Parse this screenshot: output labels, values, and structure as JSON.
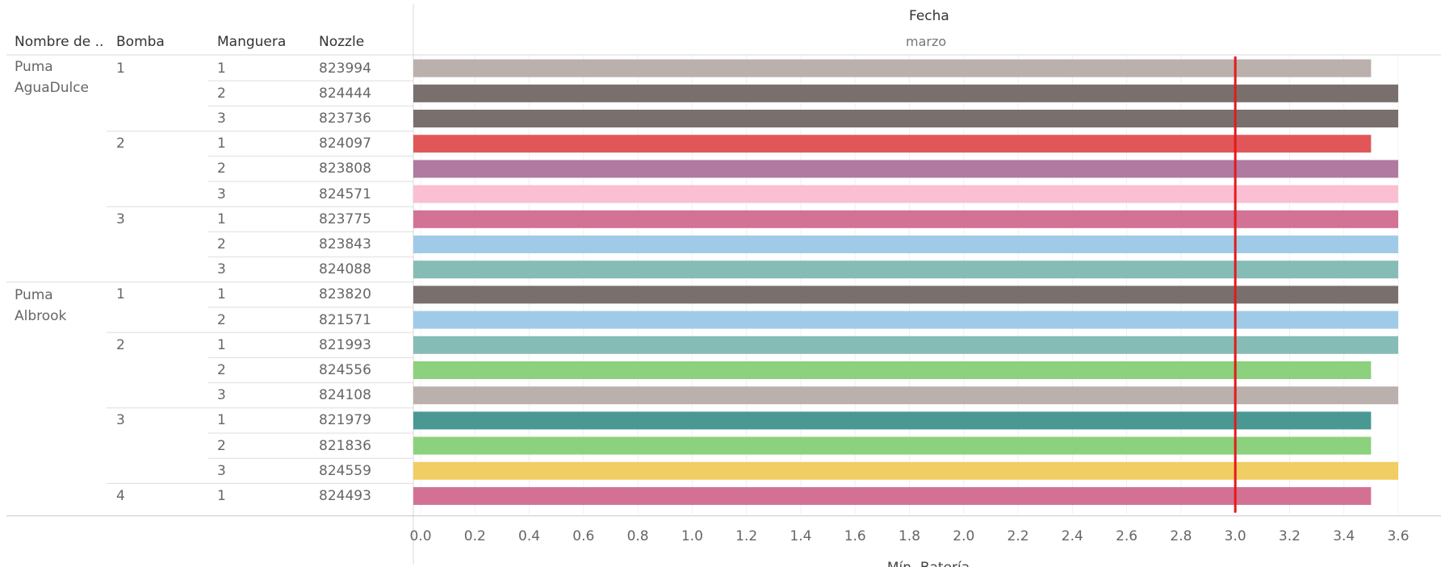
{
  "headers": {
    "col1": "Nombre de ..",
    "col2": "Bomba",
    "col3": "Manguera",
    "col4": "Nozzle",
    "top": "Fecha",
    "sub": "marzo"
  },
  "groups": [
    {
      "name": [
        "Puma",
        "AguaDulce"
      ]
    },
    {
      "name": [
        "Puma",
        "Albrook"
      ]
    }
  ],
  "chart_data": {
    "type": "bar",
    "orientation": "horizontal",
    "title": "Fecha",
    "column_label": "marzo",
    "xlabel": "Mín. Batería",
    "xlim": [
      0,
      3.6
    ],
    "xticks": [
      "0.0",
      "0.2",
      "0.4",
      "0.6",
      "0.8",
      "1.0",
      "1.2",
      "1.4",
      "1.6",
      "1.8",
      "2.0",
      "2.2",
      "2.4",
      "2.6",
      "2.8",
      "3.0",
      "3.2",
      "3.4",
      "3.6"
    ],
    "reference_line": {
      "x": 3.0,
      "color": "#e31a1c"
    },
    "grid": true,
    "rows": [
      {
        "station": "Puma AguaDulce",
        "bomba": "1",
        "manguera": "1",
        "nozzle": "823994",
        "value": 3.5,
        "color": "#bab0ac"
      },
      {
        "station": "Puma AguaDulce",
        "bomba": "1",
        "manguera": "2",
        "nozzle": "824444",
        "value": 3.6,
        "color": "#79706e"
      },
      {
        "station": "Puma AguaDulce",
        "bomba": "1",
        "manguera": "3",
        "nozzle": "823736",
        "value": 3.6,
        "color": "#79706e"
      },
      {
        "station": "Puma AguaDulce",
        "bomba": "2",
        "manguera": "1",
        "nozzle": "824097",
        "value": 3.5,
        "color": "#e15759"
      },
      {
        "station": "Puma AguaDulce",
        "bomba": "2",
        "manguera": "2",
        "nozzle": "823808",
        "value": 3.6,
        "color": "#b07aa1"
      },
      {
        "station": "Puma AguaDulce",
        "bomba": "2",
        "manguera": "3",
        "nozzle": "824571",
        "value": 3.6,
        "color": "#fabfd2"
      },
      {
        "station": "Puma AguaDulce",
        "bomba": "3",
        "manguera": "1",
        "nozzle": "823775",
        "value": 3.6,
        "color": "#d37295"
      },
      {
        "station": "Puma AguaDulce",
        "bomba": "3",
        "manguera": "2",
        "nozzle": "823843",
        "value": 3.6,
        "color": "#a0cbe8"
      },
      {
        "station": "Puma AguaDulce",
        "bomba": "3",
        "manguera": "3",
        "nozzle": "824088",
        "value": 3.6,
        "color": "#86bcb6"
      },
      {
        "station": "Puma Albrook",
        "bomba": "1",
        "manguera": "1",
        "nozzle": "823820",
        "value": 3.6,
        "color": "#79706e"
      },
      {
        "station": "Puma Albrook",
        "bomba": "1",
        "manguera": "2",
        "nozzle": "821571",
        "value": 3.6,
        "color": "#a0cbe8"
      },
      {
        "station": "Puma Albrook",
        "bomba": "2",
        "manguera": "1",
        "nozzle": "821993",
        "value": 3.6,
        "color": "#86bcb6"
      },
      {
        "station": "Puma Albrook",
        "bomba": "2",
        "manguera": "2",
        "nozzle": "824556",
        "value": 3.5,
        "color": "#8cd17d"
      },
      {
        "station": "Puma Albrook",
        "bomba": "2",
        "manguera": "3",
        "nozzle": "824108",
        "value": 3.6,
        "color": "#bab0ac"
      },
      {
        "station": "Puma Albrook",
        "bomba": "3",
        "manguera": "1",
        "nozzle": "821979",
        "value": 3.5,
        "color": "#499894"
      },
      {
        "station": "Puma Albrook",
        "bomba": "3",
        "manguera": "2",
        "nozzle": "821836",
        "value": 3.5,
        "color": "#8cd17d"
      },
      {
        "station": "Puma Albrook",
        "bomba": "3",
        "manguera": "3",
        "nozzle": "824559",
        "value": 3.6,
        "color": "#f1ce63"
      },
      {
        "station": "Puma Albrook",
        "bomba": "4",
        "manguera": "1",
        "nozzle": "824493",
        "value": 3.5,
        "color": "#d37295"
      }
    ]
  }
}
